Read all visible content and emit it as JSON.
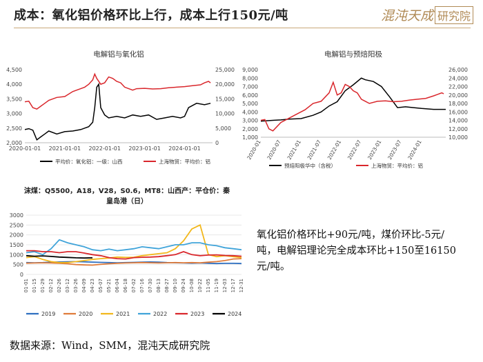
{
  "header": {
    "title": "成本：氧化铝价格环比上行，成本上行150元/吨",
    "logo_text": "混沌天成",
    "logo_box_text": "研究院",
    "accent": "#b08a55"
  },
  "note_text": "氧化铝价格环比+90元/吨，煤价环比-5元/吨，电解铝理论完全成本环比+150至16150元/吨。",
  "source_text": "数据来源：Wind，SMM，混沌天成研究院",
  "chart_data": [
    {
      "id": "alumina",
      "type": "line",
      "title": "电解铝与氧化铝",
      "x_ticks": [
        "2020-01-01",
        "2021-01-01",
        "2022-01-01",
        "2023-01-01",
        "2024-01-01"
      ],
      "x_range": [
        2020.0,
        2024.7
      ],
      "y_left": {
        "range": [
          2000,
          4500
        ],
        "ticks": [
          "2,000",
          "2,500",
          "3,000",
          "3,500",
          "4,000",
          "4,500"
        ]
      },
      "y_right": {
        "range": [
          0,
          25000
        ],
        "ticks": [
          "0",
          "5,000",
          "10,000",
          "15,000",
          "20,000",
          "25,000"
        ]
      },
      "series": [
        {
          "name": "平均价：氧化铝：一级：山西",
          "axis": "left",
          "color": "#000000",
          "x": [
            2020.0,
            2020.1,
            2020.2,
            2020.3,
            2020.4,
            2020.5,
            2020.6,
            2020.8,
            2021.0,
            2021.2,
            2021.4,
            2021.5,
            2021.6,
            2021.7,
            2021.75,
            2021.8,
            2021.85,
            2021.9,
            2022.0,
            2022.1,
            2022.3,
            2022.5,
            2022.7,
            2022.9,
            2023.1,
            2023.3,
            2023.5,
            2023.7,
            2023.9,
            2024.0,
            2024.1,
            2024.3,
            2024.5,
            2024.65
          ],
          "y": [
            2450,
            2480,
            2430,
            2100,
            2200,
            2300,
            2400,
            2300,
            2380,
            2400,
            2450,
            2500,
            2550,
            2700,
            3200,
            3900,
            4000,
            3200,
            2950,
            2850,
            2900,
            2850,
            2950,
            2900,
            2950,
            2800,
            2850,
            2900,
            2850,
            2900,
            3200,
            3350,
            3300,
            3350
          ]
        },
        {
          "name": "上海物贸：平均价：铝",
          "axis": "right",
          "color": "#d9262b",
          "x": [
            2020.0,
            2020.1,
            2020.2,
            2020.3,
            2020.4,
            2020.5,
            2020.6,
            2020.8,
            2021.0,
            2021.2,
            2021.4,
            2021.5,
            2021.6,
            2021.7,
            2021.75,
            2021.8,
            2021.9,
            2022.0,
            2022.1,
            2022.2,
            2022.3,
            2022.4,
            2022.5,
            2022.6,
            2022.7,
            2022.8,
            2023.0,
            2023.2,
            2023.4,
            2023.6,
            2023.8,
            2024.0,
            2024.2,
            2024.4,
            2024.5,
            2024.6,
            2024.65
          ],
          "y": [
            14000,
            14200,
            12000,
            11500,
            12500,
            13500,
            14500,
            15500,
            15800,
            17500,
            18500,
            19000,
            20000,
            21500,
            23500,
            22000,
            20000,
            20500,
            22500,
            22000,
            21000,
            20500,
            19000,
            18500,
            18000,
            18500,
            18600,
            18400,
            18500,
            18800,
            19000,
            19200,
            19500,
            19800,
            20500,
            21000,
            20500
          ]
        }
      ]
    },
    {
      "id": "anode",
      "type": "line",
      "title": "电解铝与预焙阳极",
      "x_ticks": [
        "2020-01",
        "2020-07",
        "2021-01",
        "2021-07",
        "2022-01",
        "2022-07",
        "2023-01",
        "2023-07",
        "2024-01"
      ],
      "x_range": [
        2020.0,
        2024.6
      ],
      "y_left": {
        "range": [
          1000,
          9000
        ],
        "ticks": [
          "1,000",
          "2,000",
          "3,000",
          "4,000",
          "5,000",
          "6,000",
          "7,000",
          "8,000",
          "9,000"
        ]
      },
      "y_right": {
        "range": [
          10000,
          26000
        ],
        "ticks": [
          "10,000",
          "12,000",
          "14,000",
          "16,000",
          "18,000",
          "20,000",
          "22,000",
          "24,000",
          "26,000"
        ]
      },
      "series": [
        {
          "name": "预焙阳极华中（含税）",
          "axis": "left",
          "color": "#000000",
          "x": [
            2020.0,
            2020.3,
            2020.5,
            2020.7,
            2021.0,
            2021.3,
            2021.5,
            2021.7,
            2021.9,
            2022.1,
            2022.3,
            2022.5,
            2022.6,
            2022.8,
            2023.0,
            2023.2,
            2023.4,
            2023.6,
            2023.8,
            2024.0,
            2024.3,
            2024.6
          ],
          "y": [
            2900,
            3000,
            3050,
            3150,
            3200,
            3600,
            4000,
            4700,
            5200,
            6500,
            7200,
            8000,
            7800,
            7600,
            7000,
            5800,
            4500,
            4600,
            4500,
            4400,
            4300,
            4300
          ]
        },
        {
          "name": "上海物贸：平均价：铝",
          "axis": "right",
          "color": "#d9262b",
          "x": [
            2020.0,
            2020.1,
            2020.2,
            2020.3,
            2020.4,
            2020.5,
            2020.7,
            2020.9,
            2021.1,
            2021.3,
            2021.5,
            2021.7,
            2021.8,
            2021.9,
            2022.0,
            2022.1,
            2022.2,
            2022.3,
            2022.4,
            2022.5,
            2022.6,
            2022.7,
            2022.9,
            2023.1,
            2023.3,
            2023.5,
            2023.7,
            2023.9,
            2024.1,
            2024.3,
            2024.5,
            2024.55
          ],
          "y": [
            14000,
            14200,
            12000,
            11500,
            12500,
            13500,
            14500,
            15500,
            16500,
            18000,
            18500,
            20500,
            23000,
            20000,
            20500,
            22500,
            22000,
            21000,
            20500,
            19000,
            18500,
            18000,
            18500,
            18600,
            18400,
            18500,
            18800,
            19000,
            19200,
            19800,
            20500,
            20300
          ]
        }
      ]
    },
    {
      "id": "coal",
      "type": "line",
      "title": "沫煤：Q5500，A18，V28，S0.6，MT8：山西产：平仓价：秦皇岛港（日）",
      "x_ticks": [
        "01-01",
        "01-15",
        "01-29",
        "02-12",
        "02-26",
        "03-12",
        "03-26",
        "04-09",
        "04-23",
        "05-07",
        "05-21",
        "06-04",
        "06-18",
        "07-02",
        "07-16",
        "07-30",
        "08-13",
        "08-27",
        "09-10",
        "09-24",
        "10-08",
        "10-22",
        "11-05",
        "11-19",
        "12-03",
        "12-17",
        "12-31"
      ],
      "y_range": [
        0,
        3000
      ],
      "y_ticks": [
        "0",
        "500",
        "1000",
        "1500",
        "2000",
        "2500",
        "3000"
      ],
      "series": [
        {
          "name": "2019",
          "color": "#2e6fc0",
          "y": [
            600,
            590,
            600,
            620,
            630,
            640,
            650,
            640,
            620,
            610,
            600,
            590,
            600,
            610,
            620,
            630,
            620,
            600,
            590,
            580,
            570,
            580,
            560,
            550,
            560,
            560,
            550
          ]
        },
        {
          "name": "2020",
          "color": "#e07b39",
          "y": [
            570,
            580,
            590,
            580,
            560,
            540,
            500,
            480,
            470,
            510,
            540,
            560,
            580,
            590,
            600,
            590,
            580,
            590,
            600,
            590,
            600,
            590,
            620,
            650,
            700,
            780,
            800
          ]
        },
        {
          "name": "2021",
          "color": "#f2b71b",
          "y": [
            850,
            900,
            760,
            650,
            600,
            600,
            650,
            700,
            760,
            800,
            830,
            880,
            860,
            870,
            950,
            1000,
            1050,
            1100,
            1300,
            1700,
            2300,
            2500,
            1000,
            900,
            950,
            900,
            850
          ]
        },
        {
          "name": "2022",
          "color": "#3fa3d9",
          "y": [
            1100,
            1150,
            1000,
            1300,
            1750,
            1600,
            1500,
            1400,
            1250,
            1200,
            1280,
            1200,
            1250,
            1300,
            1400,
            1350,
            1300,
            1400,
            1500,
            1500,
            1600,
            1600,
            1500,
            1450,
            1350,
            1300,
            1250
          ]
        },
        {
          "name": "2023",
          "color": "#d9262b",
          "y": [
            1200,
            1200,
            1150,
            1150,
            1100,
            1150,
            1150,
            1080,
            1000,
            950,
            850,
            800,
            780,
            850,
            870,
            880,
            900,
            950,
            1000,
            1150,
            1000,
            950,
            980,
            990,
            960,
            950,
            920
          ]
        },
        {
          "name": "2024",
          "color": "#000000",
          "y": [
            950,
            920,
            940,
            910,
            880,
            860,
            840,
            830,
            840
          ]
        }
      ]
    }
  ]
}
